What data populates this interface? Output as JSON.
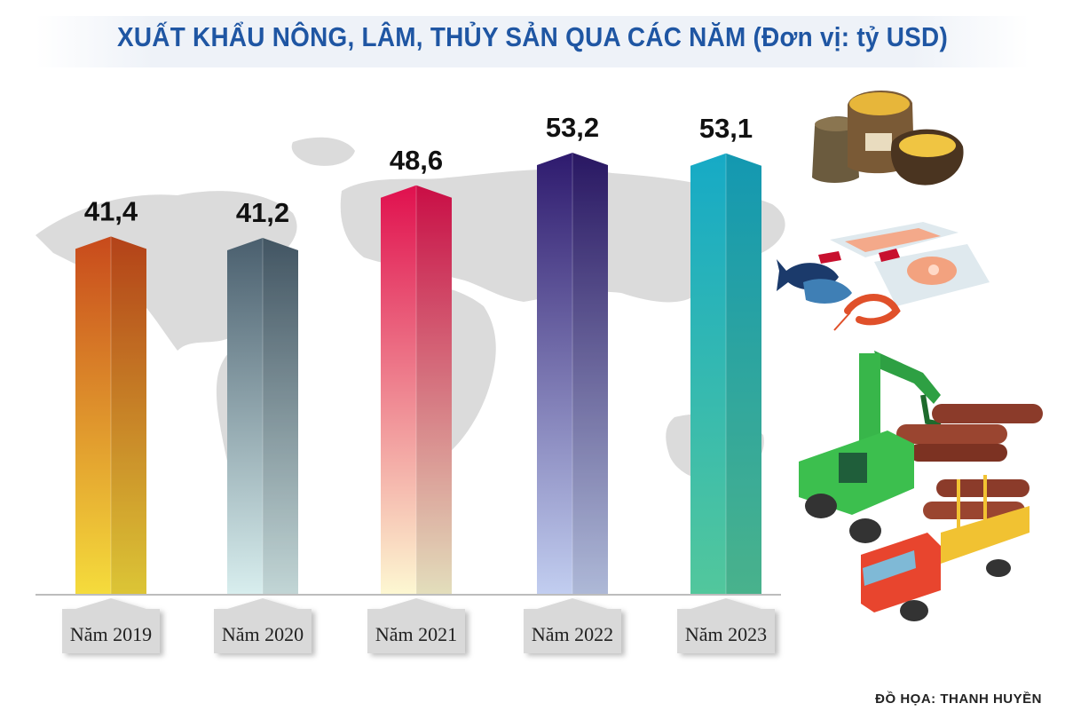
{
  "title": "XUẤT KHẨU NÔNG, LÂM, THỦY SẢN QUA CÁC NĂM (Đơn vị: tỷ USD)",
  "credit": "ĐỒ HỌA: THANH HUYỀN",
  "chart_data": {
    "type": "bar",
    "categories": [
      "Năm 2019",
      "Năm 2020",
      "Năm 2021",
      "Năm 2022",
      "Năm 2023"
    ],
    "values": [
      41.4,
      41.2,
      48.6,
      53.2,
      53.1
    ],
    "value_labels": [
      "41,4",
      "41,2",
      "48,6",
      "53,2",
      "53,1"
    ],
    "title": "XUẤT KHẨU NÔNG, LÂM, THỦY SẢN QUA CÁC NĂM (Đơn vị: tỷ USD)",
    "grid": false,
    "bar_colors": [
      [
        "#c84a1c",
        "#f5dc3c"
      ],
      [
        "#4a5f6e",
        "#d8eeee"
      ],
      [
        "#e0104e",
        "#fdf8d2"
      ],
      [
        "#2e1a6e",
        "#c2cef0"
      ],
      [
        "#16aac6",
        "#52c79c"
      ]
    ]
  }
}
